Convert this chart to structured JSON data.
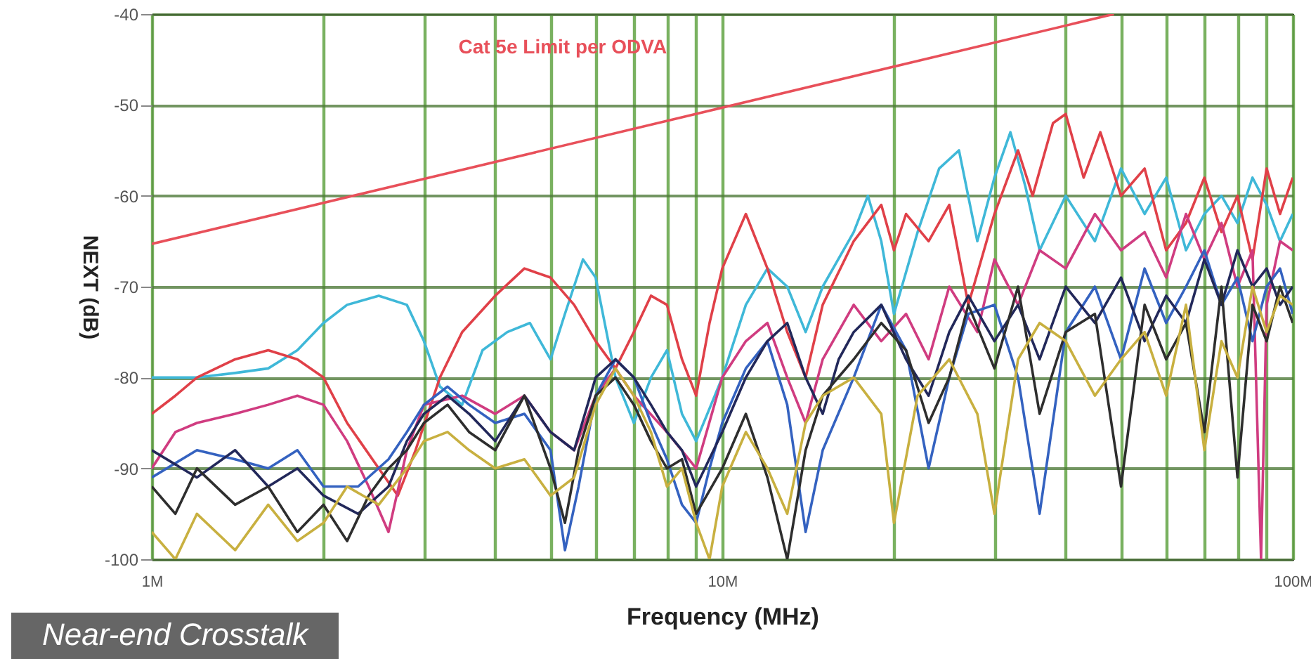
{
  "chart_data": {
    "type": "line",
    "xlabel": "Frequency (MHz)",
    "ylabel": "NEXT (dB)",
    "log": "x",
    "xlim": [
      1,
      100
    ],
    "ylim": [
      -100,
      -40
    ],
    "xticks": [
      {
        "value": 1,
        "label": "1M"
      },
      {
        "value": 2,
        "label": null
      },
      {
        "value": 3,
        "label": null
      },
      {
        "value": 4,
        "label": null
      },
      {
        "value": 5,
        "label": null
      },
      {
        "value": 6,
        "label": null
      },
      {
        "value": 7,
        "label": null
      },
      {
        "value": 8,
        "label": null
      },
      {
        "value": 9,
        "label": null
      },
      {
        "value": 10,
        "label": "10M"
      },
      {
        "value": 20,
        "label": null
      },
      {
        "value": 30,
        "label": null
      },
      {
        "value": 40,
        "label": null
      },
      {
        "value": 50,
        "label": null
      },
      {
        "value": 60,
        "label": null
      },
      {
        "value": 70,
        "label": null
      },
      {
        "value": 80,
        "label": null
      },
      {
        "value": 90,
        "label": null
      },
      {
        "value": 100,
        "label": "100M"
      }
    ],
    "yticks": [
      -100,
      -90,
      -80,
      -70,
      -60,
      -50,
      -40
    ],
    "grid": true,
    "annotations": [
      "Near-end Crosstalk"
    ],
    "series": [
      {
        "name": "Cat 5e Limit per ODVA",
        "color": "#e8505a",
        "x": [
          1,
          48.6
        ],
        "values": [
          -65.3,
          -40
        ]
      },
      {
        "color": "#3fb8d8",
        "x": [
          1,
          1.2,
          1.4,
          1.6,
          1.8,
          2,
          2.2,
          2.5,
          2.8,
          3,
          3.2,
          3.5,
          3.8,
          4.2,
          4.6,
          5,
          5.3,
          5.7,
          6,
          6.5,
          7,
          7.5,
          8,
          8.5,
          9,
          10,
          11,
          12,
          13,
          14,
          15,
          17,
          18,
          19,
          20,
          22,
          24,
          26,
          28,
          30,
          32,
          34,
          36,
          40,
          45,
          50,
          55,
          60,
          65,
          70,
          75,
          80,
          85,
          90,
          95,
          100
        ],
        "values": [
          -80,
          -80,
          -79.5,
          -79,
          -77,
          -74,
          -72,
          -71,
          -72,
          -76,
          -81,
          -83,
          -77,
          -75,
          -74,
          -78,
          -73,
          -67,
          -69,
          -80,
          -85,
          -80,
          -77,
          -84,
          -87,
          -80,
          -72,
          -68,
          -70,
          -75,
          -70,
          -64,
          -60,
          -65,
          -73,
          -64,
          -57,
          -55,
          -65,
          -58,
          -53,
          -59,
          -66,
          -60,
          -65,
          -57,
          -62,
          -58,
          -66,
          -62,
          -60,
          -63,
          -58,
          -61,
          -65,
          -62
        ]
      },
      {
        "color": "#e04048",
        "x": [
          1,
          1.1,
          1.2,
          1.4,
          1.6,
          1.8,
          2,
          2.2,
          2.5,
          2.7,
          2.9,
          3.2,
          3.5,
          4,
          4.5,
          5,
          5.5,
          6,
          6.5,
          7,
          7.5,
          8,
          8.5,
          9,
          9.5,
          10,
          11,
          12,
          13,
          14,
          15,
          17,
          19,
          20,
          21,
          23,
          25,
          27,
          30,
          33,
          35,
          38,
          40,
          43,
          46,
          50,
          55,
          60,
          65,
          70,
          75,
          80,
          85,
          90,
          95,
          100
        ],
        "values": [
          -84,
          -82,
          -80,
          -78,
          -77,
          -78,
          -80,
          -85,
          -90,
          -93,
          -88,
          -80,
          -75,
          -71,
          -68,
          -69,
          -72,
          -76,
          -79,
          -75,
          -71,
          -72,
          -78,
          -82,
          -74,
          -68,
          -62,
          -68,
          -75,
          -80,
          -72,
          -65,
          -61,
          -66,
          -62,
          -65,
          -61,
          -72,
          -62,
          -55,
          -60,
          -52,
          -51,
          -58,
          -53,
          -60,
          -57,
          -66,
          -63,
          -58,
          -64,
          -60,
          -67,
          -57,
          -62,
          -58
        ]
      },
      {
        "color": "#d03c80",
        "x": [
          1,
          1.1,
          1.2,
          1.4,
          1.6,
          1.8,
          2,
          2.2,
          2.4,
          2.6,
          2.8,
          3,
          3.5,
          4,
          4.5,
          5,
          5.5,
          6,
          6.5,
          7,
          8,
          9,
          10,
          11,
          12,
          13,
          14,
          15,
          17,
          19,
          21,
          23,
          25,
          28,
          30,
          33,
          36,
          40,
          45,
          50,
          55,
          60,
          65,
          70,
          75,
          80,
          85,
          88,
          90,
          95,
          100
        ],
        "values": [
          -90,
          -86,
          -85,
          -84,
          -83,
          -82,
          -83,
          -87,
          -92,
          -97,
          -88,
          -83,
          -82,
          -84,
          -82,
          -86,
          -88,
          -82,
          -79,
          -82,
          -86,
          -90,
          -80,
          -76,
          -74,
          -80,
          -85,
          -78,
          -72,
          -76,
          -73,
          -78,
          -70,
          -75,
          -67,
          -72,
          -66,
          -68,
          -62,
          -66,
          -64,
          -69,
          -62,
          -67,
          -63,
          -70,
          -66,
          -100,
          -72,
          -65,
          -66
        ]
      },
      {
        "color": "#3462c0",
        "x": [
          1,
          1.2,
          1.4,
          1.6,
          1.8,
          2,
          2.3,
          2.6,
          2.8,
          3,
          3.3,
          3.6,
          4,
          4.5,
          5,
          5.3,
          5.6,
          6,
          6.5,
          7,
          7.5,
          8,
          8.5,
          9,
          9.5,
          10,
          11,
          12,
          13,
          14,
          15,
          17,
          19,
          21,
          23,
          25,
          27,
          30,
          33,
          36,
          40,
          45,
          50,
          55,
          60,
          65,
          70,
          75,
          80,
          85,
          90,
          95,
          100
        ],
        "values": [
          -91,
          -88,
          -89,
          -90,
          -88,
          -92,
          -92,
          -89,
          -86,
          -83,
          -81,
          -83,
          -85,
          -84,
          -88,
          -99,
          -92,
          -82,
          -78,
          -80,
          -85,
          -89,
          -94,
          -96,
          -90,
          -85,
          -79,
          -76,
          -83,
          -97,
          -88,
          -80,
          -72,
          -77,
          -90,
          -80,
          -73,
          -72,
          -80,
          -95,
          -75,
          -70,
          -78,
          -68,
          -74,
          -70,
          -66,
          -72,
          -69,
          -76,
          -70,
          -68,
          -73
        ]
      },
      {
        "color": "#22285a",
        "x": [
          1,
          1.2,
          1.4,
          1.6,
          1.8,
          2,
          2.3,
          2.6,
          2.8,
          3,
          3.3,
          3.6,
          4,
          4.5,
          5,
          5.5,
          6,
          6.5,
          7,
          7.5,
          8,
          8.5,
          9,
          10,
          11,
          12,
          13,
          14,
          15,
          16,
          17,
          19,
          21,
          23,
          25,
          27,
          30,
          33,
          36,
          40,
          45,
          50,
          55,
          60,
          65,
          70,
          75,
          80,
          85,
          90,
          95,
          100
        ],
        "values": [
          -88,
          -91,
          -88,
          -92,
          -90,
          -93,
          -95,
          -92,
          -87,
          -84,
          -82,
          -84,
          -87,
          -82,
          -86,
          -88,
          -80,
          -78,
          -80,
          -83,
          -86,
          -88,
          -92,
          -86,
          -80,
          -76,
          -74,
          -80,
          -84,
          -78,
          -75,
          -72,
          -78,
          -82,
          -75,
          -71,
          -76,
          -72,
          -78,
          -70,
          -74,
          -69,
          -76,
          -71,
          -74,
          -67,
          -72,
          -66,
          -70,
          -68,
          -72,
          -70
        ]
      },
      {
        "color": "#2e2e2e",
        "x": [
          1,
          1.1,
          1.2,
          1.4,
          1.6,
          1.8,
          2,
          2.2,
          2.4,
          2.6,
          2.8,
          3,
          3.3,
          3.6,
          4,
          4.5,
          5,
          5.3,
          5.6,
          6,
          6.5,
          7,
          7.5,
          8,
          8.5,
          9,
          10,
          11,
          12,
          13,
          14,
          15,
          17,
          19,
          21,
          23,
          25,
          27,
          30,
          33,
          36,
          40,
          45,
          50,
          55,
          60,
          65,
          70,
          75,
          80,
          85,
          90,
          95,
          100
        ],
        "values": [
          -92,
          -95,
          -90,
          -94,
          -92,
          -97,
          -94,
          -98,
          -93,
          -90,
          -88,
          -85,
          -83,
          -86,
          -88,
          -82,
          -90,
          -96,
          -88,
          -82,
          -80,
          -83,
          -87,
          -90,
          -89,
          -95,
          -90,
          -84,
          -91,
          -100,
          -88,
          -82,
          -78,
          -74,
          -77,
          -85,
          -80,
          -72,
          -79,
          -70,
          -84,
          -75,
          -73,
          -92,
          -72,
          -78,
          -74,
          -86,
          -70,
          -91,
          -72,
          -76,
          -70,
          -74
        ]
      },
      {
        "color": "#c8b040",
        "x": [
          1,
          1.1,
          1.2,
          1.4,
          1.6,
          1.8,
          2,
          2.2,
          2.5,
          2.8,
          3,
          3.3,
          3.6,
          4,
          4.5,
          5,
          5.5,
          6,
          6.5,
          7,
          7.5,
          8,
          8.5,
          9,
          9.5,
          10,
          11,
          12,
          13,
          14,
          15,
          17,
          19,
          20,
          22,
          25,
          28,
          30,
          33,
          36,
          40,
          45,
          50,
          55,
          60,
          65,
          70,
          75,
          80,
          85,
          90,
          95,
          100
        ],
        "values": [
          -97,
          -100,
          -95,
          -99,
          -94,
          -98,
          -96,
          -92,
          -94,
          -90,
          -87,
          -86,
          -88,
          -90,
          -89,
          -93,
          -91,
          -83,
          -79,
          -82,
          -86,
          -92,
          -90,
          -96,
          -100,
          -92,
          -86,
          -90,
          -95,
          -85,
          -82,
          -80,
          -84,
          -96,
          -82,
          -78,
          -84,
          -95,
          -78,
          -74,
          -76,
          -82,
          -78,
          -75,
          -82,
          -72,
          -88,
          -76,
          -80,
          -70,
          -75,
          -71,
          -72
        ]
      }
    ]
  }
}
